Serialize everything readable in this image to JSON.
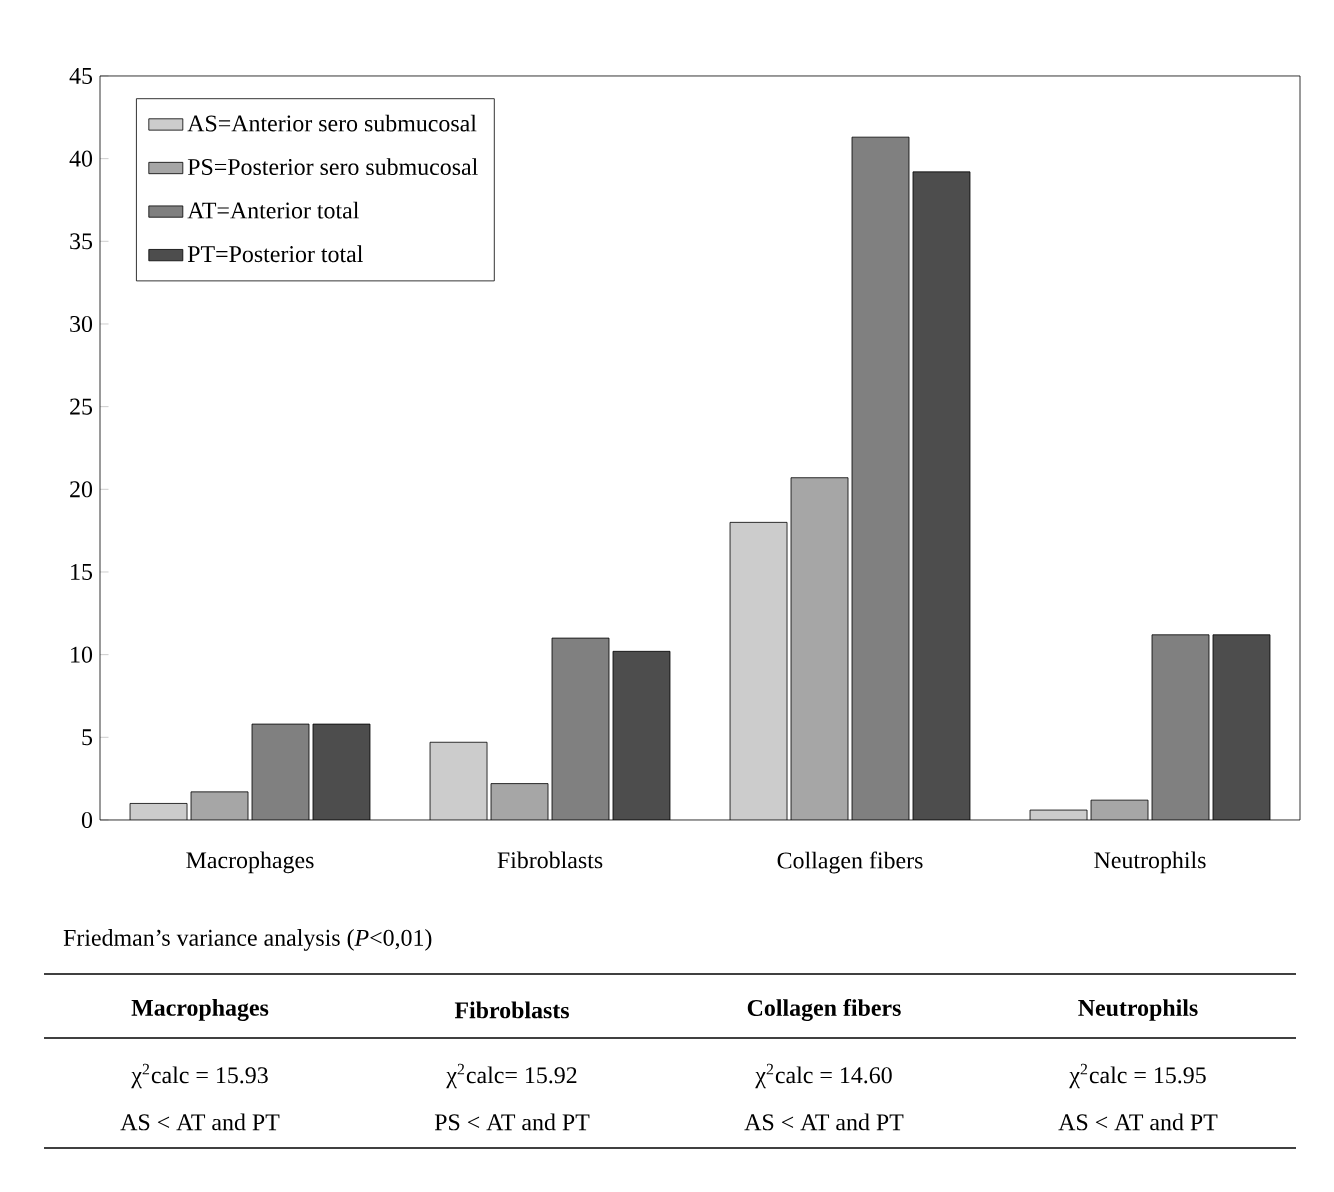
{
  "chart_data": {
    "type": "bar",
    "categories": [
      "Macrophages",
      "Fibroblasts",
      "Collagen fibers",
      "Neutrophils"
    ],
    "series": [
      {
        "name": "AS=Anterior sero submucosal",
        "color": "#cccccc",
        "values": [
          1,
          4.7,
          18,
          0.6
        ]
      },
      {
        "name": "PS=Posterior sero submucosal",
        "color": "#a6a6a6",
        "values": [
          1.7,
          2.2,
          20.7,
          1.2
        ]
      },
      {
        "name": "AT=Anterior total",
        "color": "#808080",
        "values": [
          5.8,
          11,
          41.3,
          11.2
        ]
      },
      {
        "name": "PT=Posterior total",
        "color": "#4d4d4d",
        "values": [
          5.8,
          10.2,
          39.2,
          11.2
        ]
      }
    ],
    "ylim": [
      0,
      45
    ],
    "yticks": [
      0,
      5,
      10,
      15,
      20,
      25,
      30,
      35,
      40,
      45
    ],
    "grid": false,
    "legend": "top left",
    "annotations": [
      "Friedman’s variance analysis (*P*<0,01)",
      "Macrophages",
      "Fibroblasts",
      "Collagen fibers",
      "Neutrophils",
      "χ$^{2}$calc = 15.93",
      "χ$^{2}$calc= 15.92",
      "χ$^{2}$calc = 14.60",
      "χ$^{2}$calc = 15.95",
      "AS < AT and PT",
      "PS < AT and PT",
      "AS < AT and PT",
      "AS < AT and PT"
    ]
  }
}
